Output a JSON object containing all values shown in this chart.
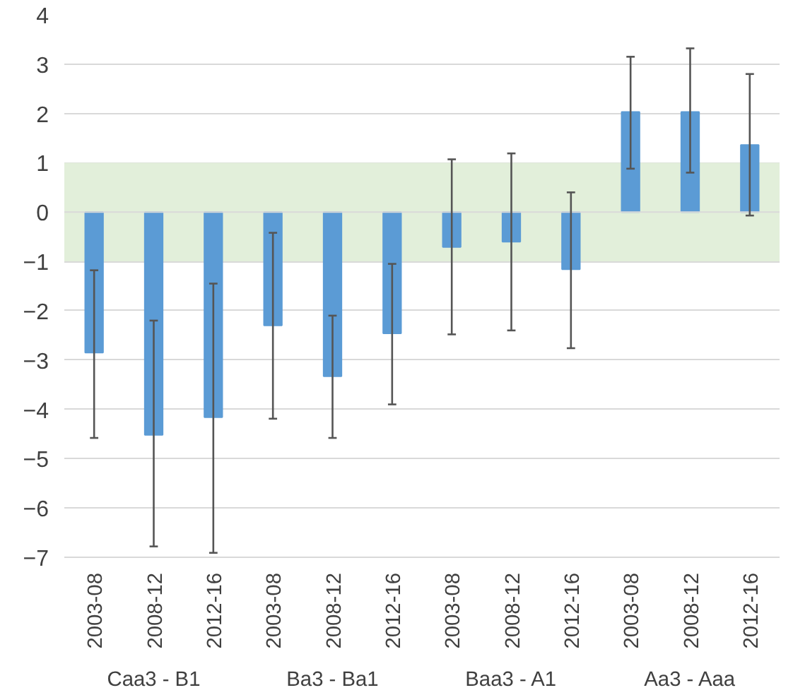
{
  "chart_data": {
    "type": "bar",
    "categories": [
      "2003-08",
      "2008-12",
      "2012-16",
      "2003-08",
      "2008-12",
      "2012-16",
      "2003-08",
      "2008-12",
      "2012-16",
      "2003-08",
      "2008-12",
      "2012-16"
    ],
    "values": [
      -2.85,
      -4.52,
      -4.16,
      -2.3,
      -3.33,
      -2.46,
      -0.71,
      -0.6,
      -1.16,
      2.03,
      2.03,
      1.36
    ],
    "color": "#5b9bd5",
    "errors": [
      [
        -4.58,
        -1.18
      ],
      [
        -6.78,
        -2.2
      ],
      [
        -6.91,
        -1.45
      ],
      [
        -4.19,
        -0.42
      ],
      [
        -4.58,
        -2.1
      ],
      [
        -3.9,
        -1.05
      ],
      [
        -2.48,
        1.07
      ],
      [
        -2.4,
        1.19
      ],
      [
        -2.76,
        0.4
      ],
      [
        0.88,
        3.15
      ],
      [
        0.8,
        3.32
      ],
      [
        -0.07,
        2.8
      ]
    ],
    "annotations": [
      "Caa3 - B1",
      "Ba3 - Ba1",
      "Baa3 - A1",
      "Aa3 - Aaa"
    ],
    "bands": [
      {
        "axis": "y",
        "from": -1,
        "to": 1,
        "color": "#e2efda"
      }
    ],
    "ylim": [
      -7,
      4
    ],
    "yticks": [
      -7,
      -6,
      -5,
      -4,
      -3,
      -2,
      -1,
      0,
      1,
      2,
      3,
      4
    ],
    "grid": "y"
  }
}
